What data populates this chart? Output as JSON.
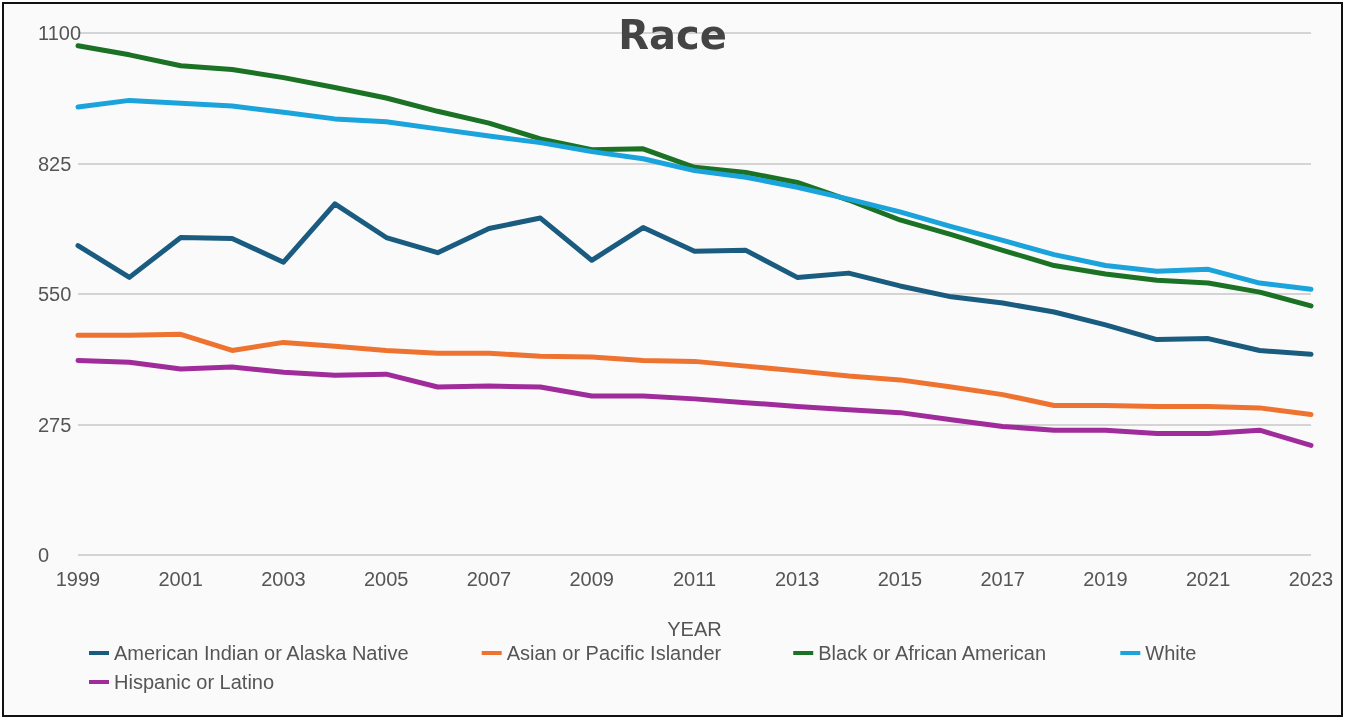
{
  "chart_data": {
    "type": "line",
    "title": "Race",
    "xlabel": "YEAR",
    "x": [
      1999,
      2000,
      2001,
      2002,
      2003,
      2004,
      2005,
      2006,
      2007,
      2008,
      2009,
      2010,
      2011,
      2012,
      2013,
      2014,
      2015,
      2016,
      2017,
      2018,
      2019,
      2020,
      2021,
      2022,
      2023
    ],
    "series": [
      {
        "name": "American Indian or Alaska Native",
        "color": "#1a5c80",
        "values": [
          652,
          585,
          669,
          667,
          617,
          740,
          669,
          637,
          688,
          710,
          621,
          690,
          640,
          642,
          585,
          594,
          567,
          544,
          531,
          512,
          485,
          454,
          456,
          431,
          423
        ]
      },
      {
        "name": "Asian or Pacific Islander",
        "color": "#ee7330",
        "values": [
          463,
          463,
          465,
          431,
          448,
          440,
          431,
          425,
          425,
          419,
          417,
          410,
          408,
          398,
          388,
          377,
          369,
          354,
          338,
          315,
          315,
          313,
          313,
          310,
          296
        ]
      },
      {
        "name": "Black or African American",
        "color": "#1b7225",
        "values": [
          1073,
          1054,
          1031,
          1023,
          1006,
          985,
          963,
          935,
          910,
          877,
          854,
          856,
          817,
          806,
          785,
          748,
          706,
          675,
          642,
          610,
          592,
          579,
          573,
          554,
          525
        ]
      },
      {
        "name": "White",
        "color": "#1ba3dc",
        "values": [
          944,
          958,
          952,
          946,
          933,
          919,
          913,
          898,
          883,
          869,
          850,
          835,
          810,
          796,
          775,
          750,
          723,
          692,
          663,
          633,
          610,
          598,
          602,
          573,
          560
        ]
      },
      {
        "name": "Hispanic or Latino",
        "color": "#a02b9a",
        "values": [
          410,
          406,
          392,
          396,
          385,
          379,
          381,
          354,
          356,
          354,
          335,
          335,
          329,
          321,
          313,
          306,
          300,
          285,
          271,
          263,
          263,
          256,
          256,
          263,
          231
        ]
      }
    ],
    "xlim": [
      1999,
      2023
    ],
    "xticks": [
      1999,
      2001,
      2003,
      2005,
      2007,
      2009,
      2011,
      2013,
      2015,
      2017,
      2019,
      2021,
      2023
    ],
    "ylim": [
      0,
      1100
    ],
    "yticks": [
      0,
      275,
      550,
      825,
      1100
    ],
    "grid": "y",
    "legend": "bottom",
    "marker": "none",
    "line_style": "solid"
  }
}
